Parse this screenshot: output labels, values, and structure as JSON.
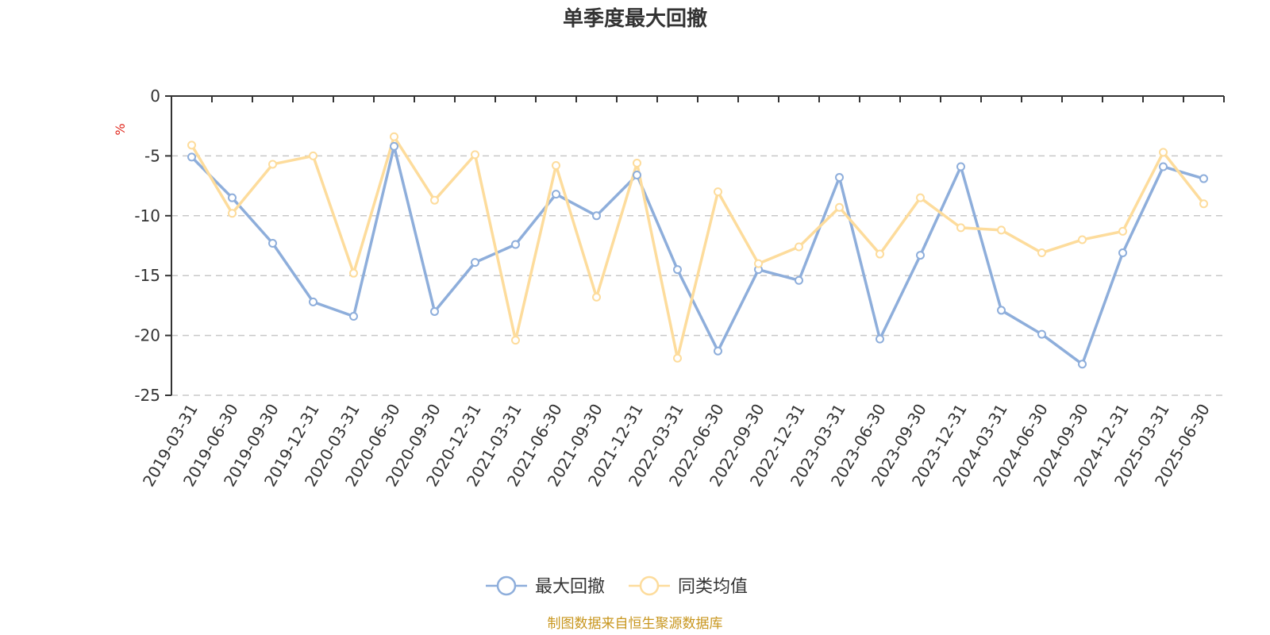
{
  "chart_data": {
    "type": "line",
    "title": "单季度最大回撤",
    "ylabel": "%",
    "ylim": [
      -25,
      0
    ],
    "yticks": [
      0,
      -5,
      -10,
      -15,
      -20,
      -25
    ],
    "grid": true,
    "legend_position": "bottom",
    "categories": [
      "2019-03-31",
      "2019-06-30",
      "2019-09-30",
      "2019-12-31",
      "2020-03-31",
      "2020-06-30",
      "2020-09-30",
      "2020-12-31",
      "2021-03-31",
      "2021-06-30",
      "2021-09-30",
      "2021-12-31",
      "2022-03-31",
      "2022-06-30",
      "2022-09-30",
      "2022-12-31",
      "2023-03-31",
      "2023-06-30",
      "2023-09-30",
      "2023-12-31",
      "2024-03-31",
      "2024-06-30",
      "2024-09-30",
      "2024-12-31",
      "2025-03-31",
      "2025-06-30"
    ],
    "series": [
      {
        "name": "最大回撤",
        "color": "#8eaedb",
        "values": [
          -5.1,
          -8.5,
          -12.3,
          -17.2,
          -18.4,
          -4.2,
          -18.0,
          -13.9,
          -12.4,
          -8.2,
          -10.0,
          -6.6,
          -14.5,
          -21.3,
          -14.5,
          -15.4,
          -6.8,
          -20.3,
          -13.3,
          -5.9,
          -17.9,
          -19.9,
          -22.4,
          -13.1,
          -5.9,
          -6.9
        ]
      },
      {
        "name": "同类均值",
        "color": "#fddc9c",
        "values": [
          -4.1,
          -9.8,
          -5.7,
          -5.0,
          -14.8,
          -3.4,
          -8.7,
          -4.9,
          -20.4,
          -5.8,
          -16.8,
          -5.6,
          -21.9,
          -8.0,
          -14.0,
          -12.6,
          -9.3,
          -13.2,
          -8.5,
          -11.0,
          -11.2,
          -13.1,
          -12.0,
          -11.3,
          -4.7,
          -9.0
        ]
      }
    ]
  },
  "footer": {
    "source": "制图数据来自恒生聚源数据库"
  }
}
